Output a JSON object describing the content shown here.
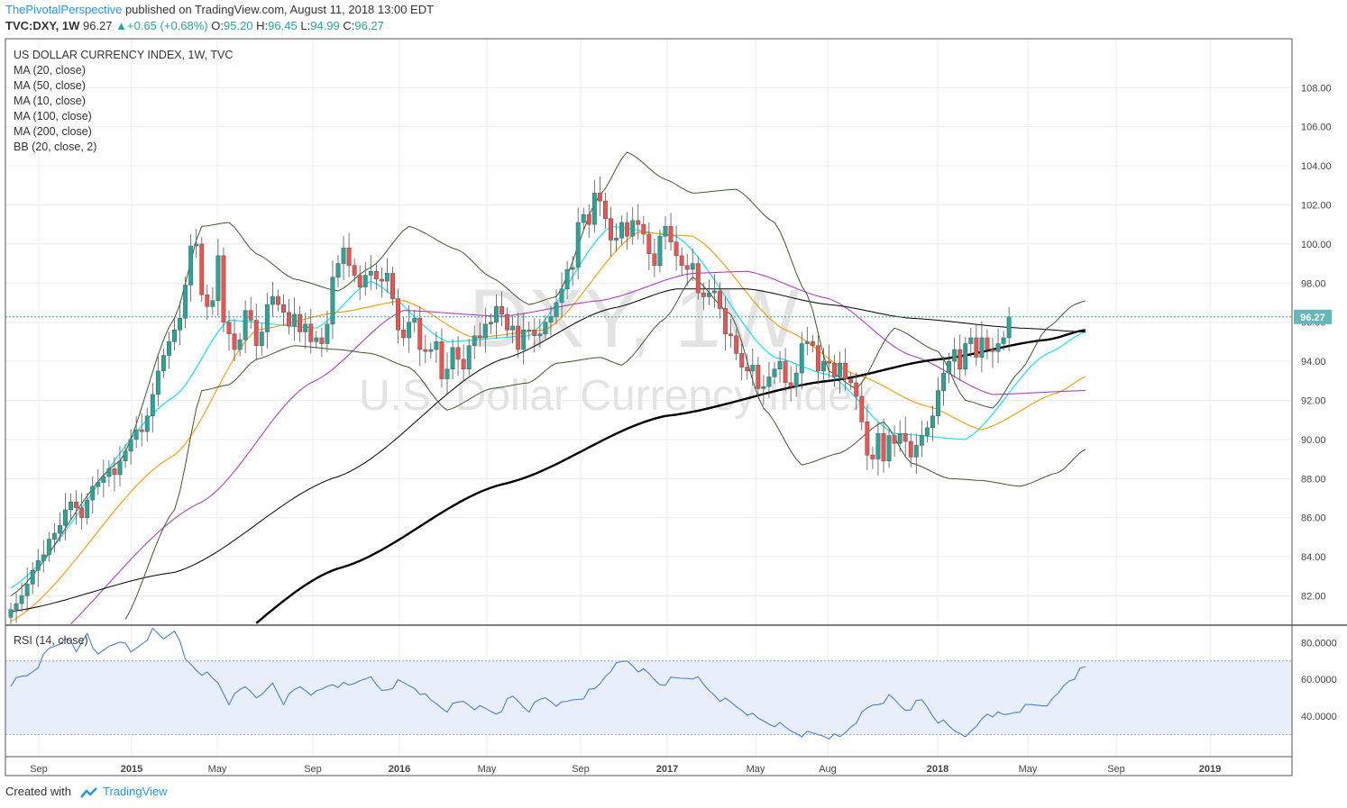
{
  "header": {
    "author": "ThePivotalPerspective",
    "published": " published on TradingView.com, August 11, 2018 13:00 EDT",
    "symbol": "TVC:DXY, 1W",
    "last": "96.27",
    "change": "+0.65 (+0.68%)",
    "o_label": "O:",
    "o": "95.20",
    "h_label": "H:",
    "h": "96.45",
    "l_label": "L:",
    "l": "94.99",
    "c_label": "C:",
    "c": "96.27"
  },
  "legend": {
    "title": "US DOLLAR CURRENCY INDEX, 1W, TVC",
    "items": [
      "MA (20, close)",
      "MA (50, close)",
      "MA (10, close)",
      "MA (100, close)",
      "MA (200, close)",
      "BB (20, close, 2)"
    ]
  },
  "watermark": {
    "symbol": "DXY, 1W",
    "name": "U.S. Dollar Currency Index"
  },
  "rsi_legend": "RSI (14, close)",
  "footer": {
    "created": "Created with",
    "brand": "TradingView"
  },
  "colors": {
    "up": "#26a69a",
    "down": "#ef5350",
    "ma10": "#00e5ff",
    "ma20": "#ff9800",
    "ma50": "#b040c0",
    "ma100": "#000000",
    "ma200": "#000000",
    "bb": "#3d5a2a",
    "rsi": "#4a7fd6",
    "price_label_bg": "#66b8b8"
  },
  "chart_data": [
    {
      "type": "candlestick",
      "title": "US DOLLAR CURRENCY INDEX, 1W, TVC",
      "x_ticks": [
        "Sep",
        "2015",
        "May",
        "Sep",
        "2016",
        "May",
        "Sep",
        "2017",
        "May",
        "Aug",
        "2018",
        "May",
        "Sep",
        "2019"
      ],
      "x_ticks_bold": [
        "2015",
        "2016",
        "2017",
        "2018",
        "2019"
      ],
      "y_ticks": [
        82,
        84,
        86,
        88,
        90,
        92,
        94,
        96,
        98,
        100,
        102,
        104,
        106,
        108
      ],
      "y_tick_labels": [
        "82.00",
        "84.00",
        "86.00",
        "88.00",
        "90.00",
        "92.00",
        "94.00",
        "96.00",
        "98.00",
        "100.00",
        "102.00",
        "104.00",
        "106.00",
        "108.00"
      ],
      "ylim": [
        80.5,
        110.5
      ],
      "last_price_label": "96.27",
      "close_series_weekly": [
        81.3,
        81.6,
        82.0,
        82.6,
        83.3,
        83.8,
        84.1,
        84.9,
        85.2,
        85.6,
        86.4,
        86.8,
        86.5,
        86.0,
        86.9,
        87.6,
        87.8,
        88.1,
        88.5,
        88.2,
        88.9,
        89.4,
        90.0,
        90.5,
        90.4,
        91.2,
        92.3,
        93.5,
        94.3,
        95.0,
        95.6,
        96.2,
        97.9,
        99.9,
        100.0,
        97.4,
        96.8,
        97.1,
        99.4,
        96.0,
        95.4,
        94.6,
        95.1,
        96.6,
        96.1,
        94.8,
        95.5,
        96.9,
        97.3,
        96.9,
        96.5,
        95.8,
        96.4,
        95.5,
        95.9,
        95.0,
        95.2,
        94.9,
        95.9,
        98.3,
        99.0,
        99.8,
        98.9,
        98.4,
        97.8,
        98.4,
        98.6,
        98.2,
        98.1,
        98.5,
        97.2,
        95.6,
        95.2,
        96.0,
        96.2,
        94.6,
        94.5,
        94.6,
        95.0,
        93.1,
        93.6,
        94.7,
        94.1,
        93.6,
        94.8,
        95.3,
        95.2,
        95.9,
        96.0,
        96.8,
        96.4,
        95.6,
        95.8,
        94.6,
        95.6,
        95.6,
        95.3,
        95.4,
        96.0,
        96.3,
        97.0,
        97.7,
        98.7,
        98.8,
        101.1,
        101.5,
        101.0,
        102.6,
        102.2,
        101.3,
        100.2,
        100.3,
        101.1,
        100.4,
        101.2,
        101.0,
        100.5,
        99.5,
        98.9,
        100.4,
        100.9,
        100.1,
        99.4,
        98.9,
        98.7,
        99.0,
        97.5,
        97.3,
        97.5,
        97.6,
        96.7,
        95.4,
        95.3,
        94.4,
        93.7,
        93.5,
        93.8,
        92.6,
        92.7,
        93.2,
        93.6,
        94.0,
        92.9,
        92.7,
        93.4,
        94.9,
        95.0,
        94.8,
        93.5,
        94.0,
        93.9,
        93.2,
        93.9,
        93.1,
        92.9,
        92.2,
        90.9,
        89.2,
        89.0,
        90.3,
        88.9,
        90.2,
        89.8,
        90.3,
        89.9,
        89.1,
        89.7,
        90.2,
        90.6,
        91.2,
        92.5,
        93.4,
        94.0,
        94.6,
        93.6,
        94.9,
        95.2,
        94.2,
        95.2,
        94.6,
        94.5,
        94.9,
        95.2,
        96.27
      ],
      "series": [
        {
          "name": "MA (10, close)",
          "anchors": [
            [
              0,
              82.4
            ],
            [
              30,
              92.2
            ],
            [
              40,
              96.1
            ],
            [
              56,
              95.7
            ],
            [
              66,
              98.1
            ],
            [
              80,
              95.0
            ],
            [
              95,
              95.3
            ],
            [
              110,
              100.9
            ],
            [
              122,
              100.4
            ],
            [
              140,
              94.2
            ],
            [
              150,
              93.3
            ],
            [
              162,
              90.3
            ],
            [
              175,
              90.0
            ],
            [
              190,
              94.4
            ],
            [
              197,
              95.5
            ]
          ]
        },
        {
          "name": "MA (20, close)",
          "anchors": [
            [
              0,
              80.7
            ],
            [
              30,
              89.2
            ],
            [
              45,
              95.6
            ],
            [
              60,
              96.5
            ],
            [
              72,
              97.1
            ],
            [
              85,
              95.2
            ],
            [
              98,
              95.6
            ],
            [
              115,
              100.6
            ],
            [
              125,
              100.4
            ],
            [
              142,
              95.6
            ],
            [
              155,
              93.3
            ],
            [
              168,
              91.7
            ],
            [
              178,
              90.5
            ],
            [
              192,
              92.4
            ],
            [
              197,
              93.2
            ]
          ]
        },
        {
          "name": "MA (50, close)",
          "anchors": [
            [
              0,
              78.2
            ],
            [
              35,
              86.8
            ],
            [
              55,
              92.9
            ],
            [
              72,
              96.6
            ],
            [
              90,
              96.3
            ],
            [
              108,
              97.1
            ],
            [
              125,
              98.5
            ],
            [
              135,
              98.6
            ],
            [
              150,
              97.2
            ],
            [
              165,
              94.3
            ],
            [
              180,
              92.3
            ],
            [
              197,
              92.5
            ]
          ]
        },
        {
          "name": "MA (100, close)",
          "anchors": [
            [
              0,
              81.2
            ],
            [
              30,
              83.2
            ],
            [
              60,
              88.1
            ],
            [
              90,
              94.1
            ],
            [
              110,
              96.7
            ],
            [
              122,
              97.7
            ],
            [
              135,
              97.7
            ],
            [
              150,
              96.9
            ],
            [
              165,
              96.2
            ],
            [
              185,
              95.7
            ],
            [
              197,
              95.5
            ]
          ]
        },
        {
          "name": "MA (200, close)",
          "anchors": [
            [
              0,
              75.0
            ],
            [
              30,
              77.8
            ],
            [
              60,
              83.4
            ],
            [
              90,
              87.7
            ],
            [
              120,
              91.2
            ],
            [
              150,
              93.0
            ],
            [
              170,
              94.1
            ],
            [
              190,
              95.1
            ],
            [
              197,
              95.6
            ]
          ]
        },
        {
          "name": "BB (20, close, 2) upper",
          "anchors": [
            [
              0,
              82.0
            ],
            [
              20,
              88.9
            ],
            [
              30,
              96.2
            ],
            [
              35,
              100.9
            ],
            [
              40,
              101.1
            ],
            [
              45,
              99.5
            ],
            [
              52,
              98.2
            ],
            [
              60,
              97.6
            ],
            [
              66,
              98.8
            ],
            [
              73,
              100.9
            ],
            [
              82,
              99.7
            ],
            [
              88,
              98.3
            ],
            [
              95,
              96.9
            ],
            [
              100,
              97.3
            ],
            [
              108,
              102.5
            ],
            [
              113,
              104.7
            ],
            [
              120,
              103.3
            ],
            [
              125,
              102.6
            ],
            [
              133,
              102.8
            ],
            [
              140,
              101.1
            ],
            [
              146,
              97.4
            ],
            [
              150,
              93.5
            ],
            [
              155,
              92.6
            ],
            [
              162,
              95.7
            ],
            [
              170,
              94.5
            ],
            [
              175,
              92.0
            ],
            [
              180,
              91.6
            ],
            [
              185,
              93.5
            ],
            [
              190,
              95.7
            ],
            [
              195,
              96.9
            ],
            [
              197,
              97.1
            ]
          ]
        },
        {
          "name": "BB (20, close, 2) lower",
          "anchors": [
            [
              0,
              79.7
            ],
            [
              20,
              80.4
            ],
            [
              30,
              86.4
            ],
            [
              35,
              92.5
            ],
            [
              40,
              92.8
            ],
            [
              45,
              94.1
            ],
            [
              52,
              94.8
            ],
            [
              60,
              94.6
            ],
            [
              66,
              94.4
            ],
            [
              73,
              93.7
            ],
            [
              80,
              91.5
            ],
            [
              88,
              92.6
            ],
            [
              95,
              92.9
            ],
            [
              100,
              93.9
            ],
            [
              108,
              94.2
            ],
            [
              112,
              93.8
            ],
            [
              120,
              96.2
            ],
            [
              125,
              98.3
            ],
            [
              132,
              96.4
            ],
            [
              138,
              91.6
            ],
            [
              145,
              88.7
            ],
            [
              152,
              89.3
            ],
            [
              160,
              90.9
            ],
            [
              165,
              88.8
            ],
            [
              172,
              88.0
            ],
            [
              178,
              87.9
            ],
            [
              185,
              87.6
            ],
            [
              192,
              88.3
            ],
            [
              197,
              89.5
            ]
          ]
        }
      ]
    },
    {
      "type": "line",
      "title": "RSI (14, close)",
      "y_ticks": [
        40,
        60,
        80
      ],
      "y_tick_labels": [
        "40.0000",
        "60.0000",
        "80.0000"
      ],
      "ylim": [
        18,
        88
      ],
      "band": [
        30,
        70
      ],
      "series": [
        {
          "name": "RSI (14, close)",
          "anchors": [
            [
              0,
              58
            ],
            [
              3,
              62
            ],
            [
              5,
              68
            ],
            [
              7,
              76
            ],
            [
              9,
              80
            ],
            [
              10,
              84
            ],
            [
              12,
              74
            ],
            [
              14,
              86
            ],
            [
              16,
              72
            ],
            [
              18,
              78
            ],
            [
              20,
              82
            ],
            [
              22,
              74
            ],
            [
              24,
              80
            ],
            [
              26,
              86
            ],
            [
              28,
              82
            ],
            [
              30,
              88
            ],
            [
              32,
              70
            ],
            [
              35,
              64
            ],
            [
              38,
              58
            ],
            [
              40,
              48
            ],
            [
              43,
              56
            ],
            [
              46,
              50
            ],
            [
              48,
              58
            ],
            [
              50,
              48
            ],
            [
              53,
              56
            ],
            [
              56,
              52
            ],
            [
              59,
              58
            ],
            [
              62,
              56
            ],
            [
              65,
              62
            ],
            [
              68,
              54
            ],
            [
              71,
              58
            ],
            [
              74,
              56
            ],
            [
              77,
              48
            ],
            [
              80,
              44
            ],
            [
              83,
              48
            ],
            [
              86,
              44
            ],
            [
              89,
              42
            ],
            [
              92,
              50
            ],
            [
              95,
              44
            ],
            [
              98,
              50
            ],
            [
              101,
              46
            ],
            [
              104,
              50
            ],
            [
              107,
              54
            ],
            [
              110,
              66
            ],
            [
              113,
              70
            ],
            [
              116,
              64
            ],
            [
              119,
              58
            ],
            [
              122,
              60
            ],
            [
              125,
              62
            ],
            [
              128,
              54
            ],
            [
              131,
              48
            ],
            [
              134,
              44
            ],
            [
              137,
              38
            ],
            [
              140,
              36
            ],
            [
              143,
              32
            ],
            [
              146,
              30
            ],
            [
              149,
              30
            ],
            [
              152,
              28
            ],
            [
              155,
              38
            ],
            [
              158,
              46
            ],
            [
              161,
              50
            ],
            [
              164,
              44
            ],
            [
              167,
              48
            ],
            [
              170,
              38
            ],
            [
              173,
              32
            ],
            [
              176,
              30
            ],
            [
              179,
              42
            ],
            [
              182,
              40
            ],
            [
              185,
              44
            ],
            [
              188,
              46
            ],
            [
              191,
              48
            ],
            [
              194,
              60
            ],
            [
              197,
              66
            ]
          ]
        }
      ]
    }
  ]
}
